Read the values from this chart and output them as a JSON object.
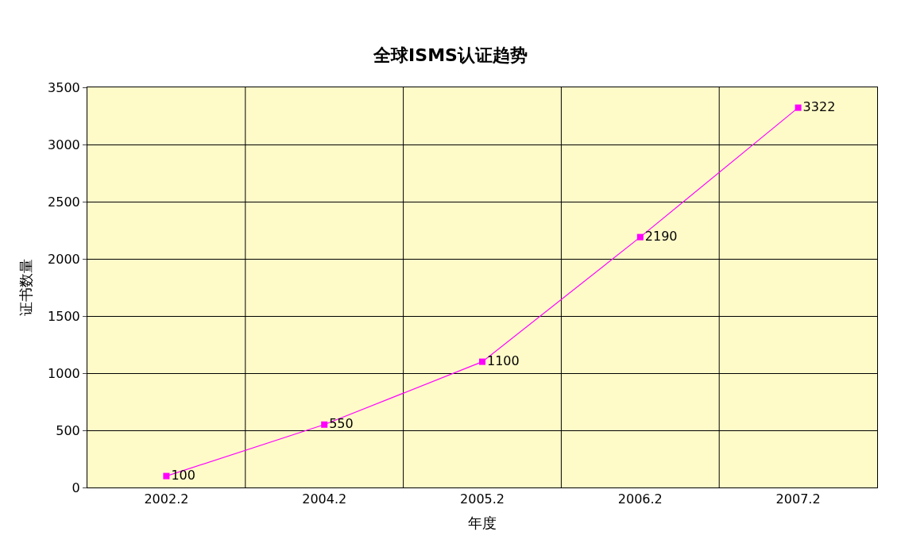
{
  "chart_data": {
    "type": "line",
    "title": "全球ISMS认证趋势",
    "xlabel": "年度",
    "ylabel": "证书数量",
    "categories": [
      "2002.2",
      "2004.2",
      "2005.2",
      "2006.2",
      "2007.2"
    ],
    "series": [
      {
        "color": "#ff00ff",
        "values": [
          100,
          550,
          1100,
          2190,
          3322
        ]
      }
    ],
    "ylim": [
      0,
      3500
    ],
    "yticks": [
      0,
      500,
      1000,
      1500,
      2000,
      2500,
      3000,
      3500
    ],
    "grid": true,
    "marker": "square",
    "data_labels": true
  }
}
